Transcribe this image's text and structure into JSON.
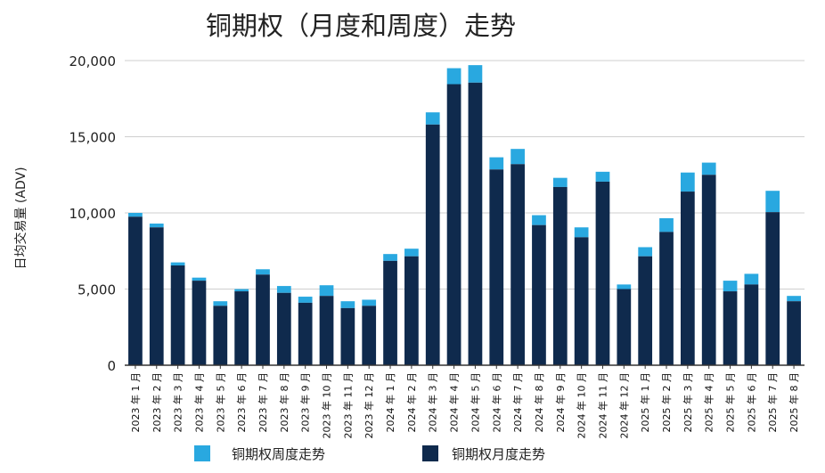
{
  "chart_data": {
    "type": "bar",
    "stacked": true,
    "title": "铜期权（月度和周度）走势",
    "xlabel": "",
    "ylabel": "日均交易量 (ADV)",
    "ylim": [
      0,
      20000
    ],
    "yticks": [
      0,
      5000,
      10000,
      15000,
      20000
    ],
    "ytick_labels": [
      "0",
      "5,000",
      "10,000",
      "15,000",
      "20,000"
    ],
    "grid": true,
    "legend_position": "bottom",
    "categories": [
      "2023 年 1 月",
      "2023 年 2 月",
      "2023 年 3 月",
      "2023 年 4 月",
      "2023 年 5 月",
      "2023 年 6 月",
      "2023 年 7 月",
      "2023 年 8 月",
      "2023 年 9 月",
      "2023 年 10 月",
      "2023 年 11 月",
      "2023 年 12 月",
      "2024 年 1 月",
      "2024 年 2 月",
      "2024 年 3 月",
      "2024 年 4 月",
      "2024 年 5 月",
      "2024 年 6 月",
      "2024 年 7 月",
      "2024 年 8 月",
      "2024 年 9 月",
      "2024 年 10 月",
      "2024 年 11 月",
      "2024 年 12 月",
      "2025 年 1 月",
      "2025 年 2 月",
      "2025 年 3 月",
      "2025 年 4 月",
      "2025 年 5 月",
      "2025 年 6 月",
      "2025 年 7 月",
      "2025 年 8 月"
    ],
    "series": [
      {
        "name": "铜期权月度走势",
        "color": "#0f2a4d",
        "values": [
          9750,
          9050,
          6550,
          5550,
          3900,
          4850,
          5950,
          4750,
          4100,
          4550,
          3750,
          3900,
          6850,
          7150,
          15800,
          18450,
          18550,
          12850,
          13200,
          9200,
          11700,
          8400,
          12050,
          5000,
          7150,
          8750,
          11400,
          12500,
          4850,
          5300,
          10050,
          4200
        ]
      },
      {
        "name": "铜期权周度走势",
        "color": "#29a8e0",
        "values": [
          250,
          250,
          200,
          200,
          300,
          150,
          350,
          450,
          400,
          700,
          450,
          400,
          450,
          500,
          800,
          1050,
          1150,
          800,
          1000,
          650,
          600,
          650,
          650,
          300,
          600,
          900,
          1250,
          800,
          700,
          700,
          1400,
          350
        ]
      }
    ],
    "legend": [
      {
        "label": "铜期权周度走势",
        "color": "#29a8e0"
      },
      {
        "label": "铜期权月度走势",
        "color": "#0f2a4d"
      }
    ]
  }
}
